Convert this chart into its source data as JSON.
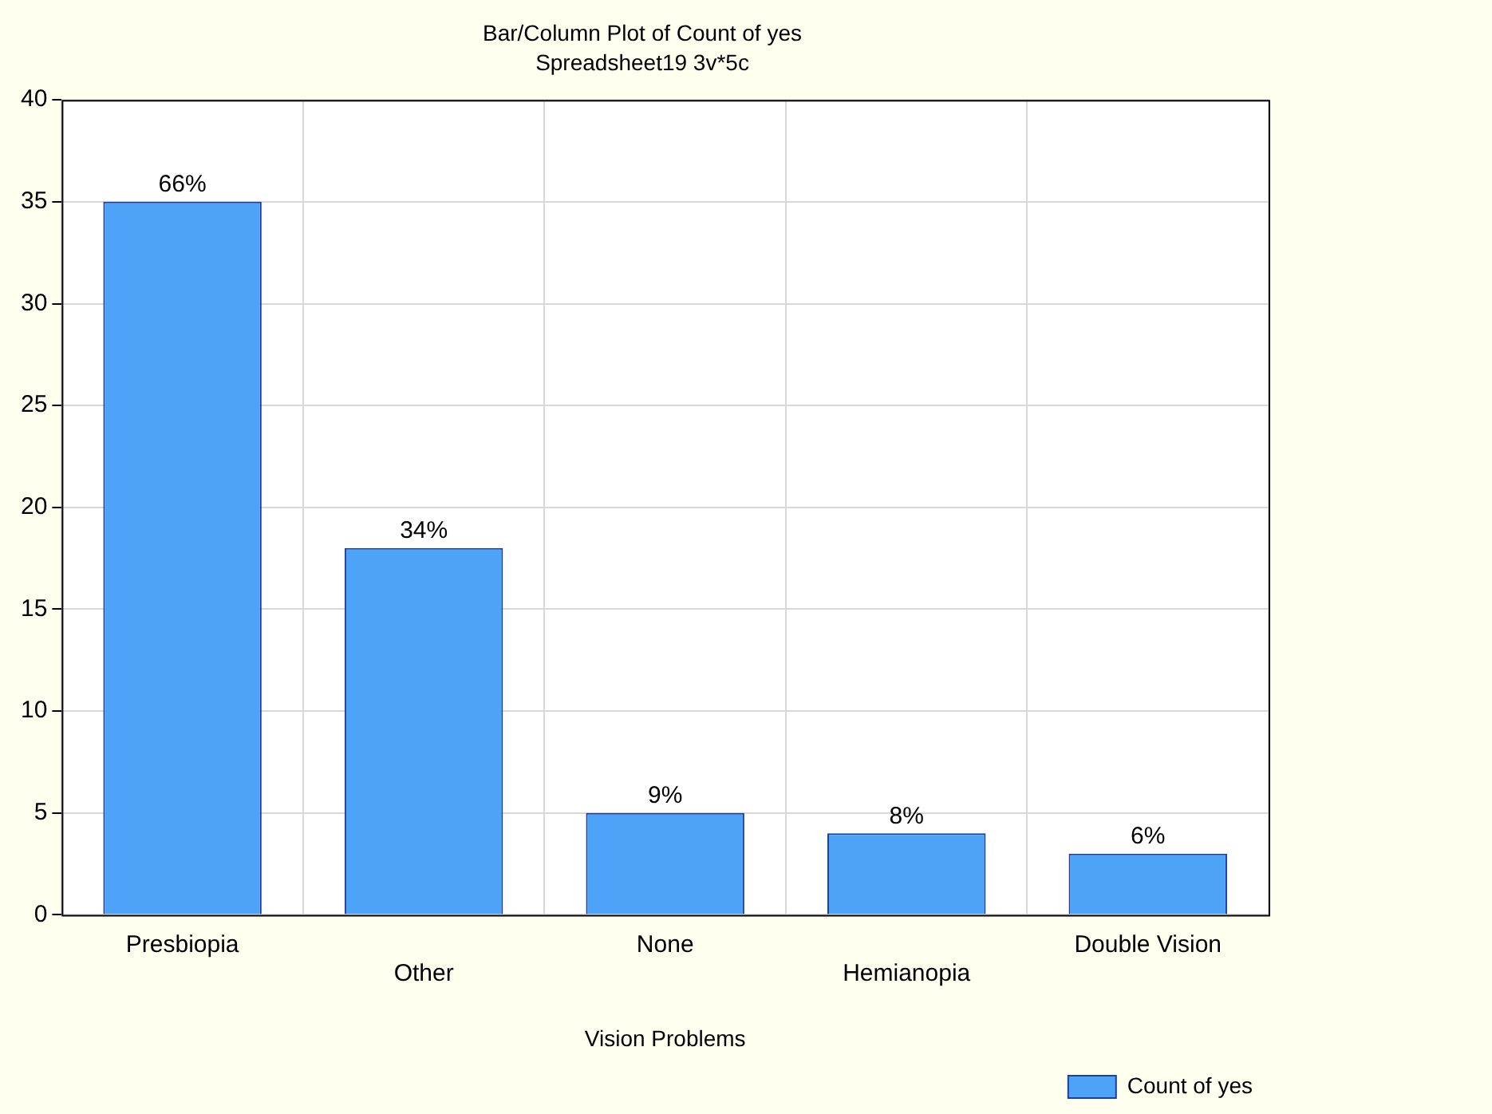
{
  "chart_data": {
    "type": "bar",
    "title": "Bar/Column Plot of Count of yes",
    "subtitle": "Spreadsheet19 3v*5c",
    "xlabel": "Vision Problems",
    "categories": [
      "Presbiopia",
      "Other",
      "None",
      "Hemianopia",
      "Double Vision"
    ],
    "series": [
      {
        "name": "Count of yes",
        "color": "#4da3f7",
        "values": [
          35,
          18,
          5,
          4,
          3
        ]
      }
    ],
    "annotations": [
      {
        "text": "66%",
        "x": "Presbiopia",
        "y": 35
      },
      {
        "text": "34%",
        "x": "Other",
        "y": 18
      },
      {
        "text": "9%",
        "x": "None",
        "y": 5
      },
      {
        "text": "8%",
        "x": "Hemianopia",
        "y": 4
      },
      {
        "text": "6%",
        "x": "Double Vision",
        "y": 3
      }
    ],
    "ylim": [
      0,
      40
    ],
    "yticks": [
      0,
      5,
      10,
      15,
      20,
      25,
      30,
      35,
      40
    ],
    "grid": true,
    "legend": "bottom right"
  }
}
